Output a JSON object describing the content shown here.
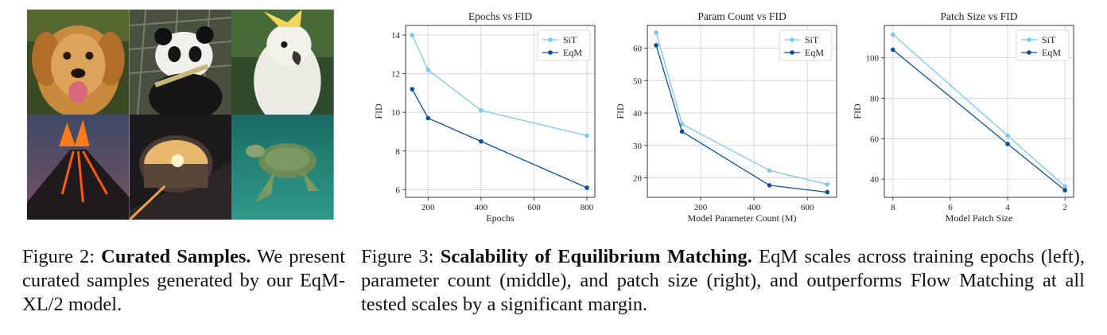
{
  "figure2": {
    "label": "Figure 2:",
    "title": "Curated Samples.",
    "text": " We present curated samples generated by our EqM-XL/2 model.",
    "tiles": [
      "golden-retriever",
      "panda",
      "cockatoo",
      "volcano",
      "car-side-mirror-sunset",
      "sea-turtle"
    ]
  },
  "figure3": {
    "label": "Figure 3:",
    "title": "Scalability of Equilibrium Matching.",
    "text": " EqM scales across training epochs (left), parameter count (middle), and patch size (right), and outperforms Flow Matching at all tested scales by a significant margin."
  },
  "colors": {
    "sit": "#7cc7ee",
    "eqm": "#0b4f9c"
  },
  "chart_data": [
    {
      "type": "line",
      "title": "Epochs vs FID",
      "xlabel": "Epochs",
      "ylabel": "FID",
      "xlim": [
        115,
        830
      ],
      "ylim": [
        5.6,
        14.5
      ],
      "xticks": [
        200,
        400,
        600,
        800
      ],
      "yticks": [
        6,
        8,
        10,
        12,
        14
      ],
      "x_reversed": false,
      "grid": true,
      "legend": "top-right",
      "series": [
        {
          "name": "SiT",
          "x": [
            140,
            200,
            400,
            800
          ],
          "y": [
            14.0,
            12.2,
            10.1,
            8.8
          ]
        },
        {
          "name": "EqM",
          "x": [
            140,
            200,
            400,
            800
          ],
          "y": [
            11.2,
            9.7,
            8.5,
            6.1
          ]
        }
      ]
    },
    {
      "type": "line",
      "title": "Param Count vs FID",
      "xlabel": "Model Parameter Count (M)",
      "ylabel": "FID",
      "xlim": [
        0,
        710
      ],
      "ylim": [
        14,
        67
      ],
      "xticks": [
        200,
        400,
        600
      ],
      "yticks": [
        20,
        30,
        40,
        50,
        60
      ],
      "x_reversed": false,
      "grid": true,
      "legend": "top-right",
      "series": [
        {
          "name": "SiT",
          "x": [
            33,
            130,
            458,
            675
          ],
          "y": [
            64.8,
            36.6,
            22.3,
            18.0
          ]
        },
        {
          "name": "EqM",
          "x": [
            33,
            130,
            458,
            675
          ],
          "y": [
            60.9,
            34.3,
            17.7,
            15.6
          ]
        }
      ]
    },
    {
      "type": "line",
      "title": "Patch Size vs FID",
      "xlabel": "Model Patch Size",
      "ylabel": "FID",
      "xlim": [
        8.3,
        1.7
      ],
      "ylim": [
        31,
        116
      ],
      "xticks": [
        8,
        6,
        4,
        2
      ],
      "yticks": [
        40,
        60,
        80,
        100
      ],
      "x_reversed": true,
      "grid": true,
      "legend": "top-right",
      "series": [
        {
          "name": "SiT",
          "x": [
            8,
            4,
            2
          ],
          "y": [
            111.5,
            61.5,
            36.4
          ]
        },
        {
          "name": "EqM",
          "x": [
            8,
            4,
            2
          ],
          "y": [
            104.0,
            57.4,
            34.5
          ]
        }
      ]
    }
  ]
}
